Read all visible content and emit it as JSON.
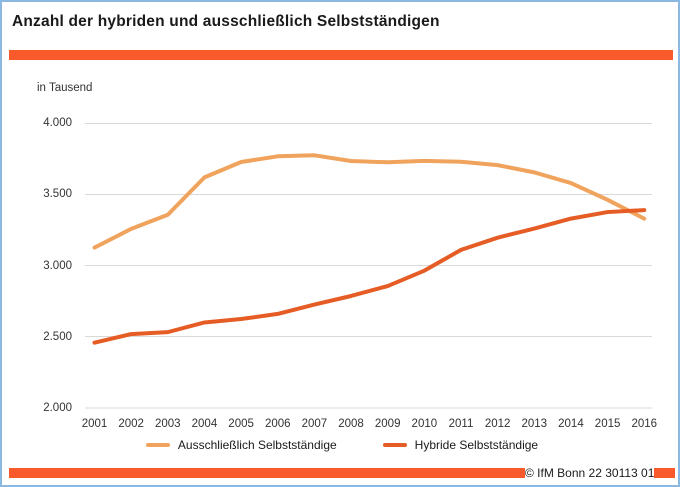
{
  "header": {
    "title": "Anzahl der hybriden und ausschließlich Selbstständigen"
  },
  "chart_data": {
    "type": "line",
    "title": "Anzahl der hybriden und ausschließlich Selbstständigen",
    "unit_label": "in Tausend",
    "x": [
      2001,
      2002,
      2003,
      2004,
      2005,
      2006,
      2007,
      2008,
      2009,
      2010,
      2011,
      2012,
      2013,
      2014,
      2015,
      2016
    ],
    "series": [
      {
        "name": "Ausschließlich Selbstständige",
        "color": "#F0A35C",
        "values": [
          3126,
          3258,
          3357,
          3620,
          3728,
          3768,
          3775,
          3735,
          3726,
          3736,
          3730,
          3706,
          3655,
          3580,
          3462,
          3330
        ]
      },
      {
        "name": "Hybride Selbstständige",
        "color": "#E55C25",
        "values": [
          2458,
          2518,
          2532,
          2600,
          2624,
          2660,
          2726,
          2786,
          2856,
          2964,
          3110,
          3196,
          3260,
          3330,
          3376,
          3390
        ]
      }
    ],
    "ylim": [
      2000,
      4000
    ],
    "yticks": [
      4000,
      3500,
      3000,
      2500,
      2000
    ],
    "ytick_labels": [
      "4.000",
      "3.500",
      "3.000",
      "2.500",
      "2.000"
    ],
    "grid": "horizontal",
    "legend_position": "bottom"
  },
  "footer": {
    "copyright": "© IfM Bonn 22 30113 01"
  },
  "colors": {
    "accent_bar": "#F95A2B",
    "gridline": "#D9D9D9",
    "window_border": "#8CB9E3"
  }
}
